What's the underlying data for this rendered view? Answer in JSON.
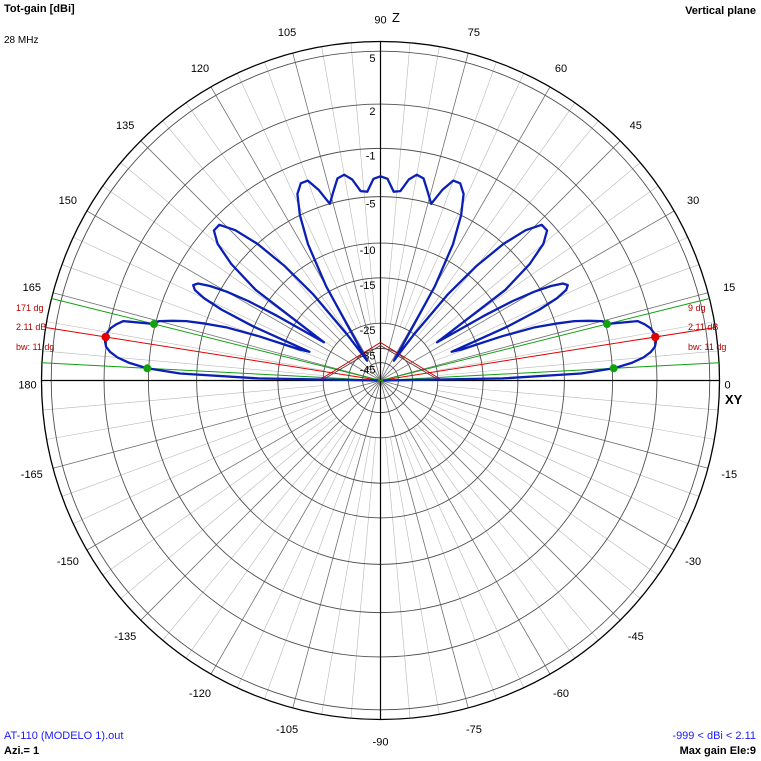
{
  "header": {
    "title": "Tot-gain [dBi]",
    "frequency": "28 MHz",
    "plane": "Vertical plane"
  },
  "footer": {
    "file": "AT-110 (MODELO 1).out",
    "azimuth": "Azi.= 1",
    "range": "-999 < dBi < 2.11",
    "max_gain": "Max gain Ele:9"
  },
  "axis_labels": {
    "vertical": "Z",
    "horizontal": "XY"
  },
  "annotations": {
    "right": {
      "angle": "9 dg",
      "gain": "2.11 dB",
      "beamwidth": "bw: 11 dg"
    },
    "left": {
      "angle": "171 dg",
      "gain": "2.11 dB",
      "beamwidth": "bw: 11 dg"
    }
  },
  "colors": {
    "pattern": "#0a1fb4",
    "grid": "#000000",
    "max_marker": "#e00000",
    "bw_marker": "#10a010",
    "text_blue": "#1a1aff"
  },
  "chart_data": {
    "type": "polar",
    "angle_ticks": [
      0,
      15,
      30,
      45,
      60,
      75,
      90,
      105,
      120,
      135,
      150,
      165,
      180,
      -165,
      -150,
      -135,
      -120,
      -105,
      -90,
      -75,
      -60,
      -45,
      -30,
      -15
    ],
    "gain_ticks": [
      5,
      2,
      -1,
      -5,
      -10,
      -15,
      -25,
      -35,
      -45
    ],
    "max_gain_dbi": 2.11,
    "max_gain_elevation_deg": 9,
    "beamwidth_deg": 11,
    "bw_limit_angles_deg": [
      3,
      14
    ],
    "series": [
      {
        "values_elevation_deg_gain_dbi": [
          [
            0,
            -45
          ],
          [
            1,
            -12
          ],
          [
            2,
            -3.5
          ],
          [
            3,
            -0.9
          ],
          [
            4,
            0.4
          ],
          [
            5,
            1.2
          ],
          [
            6,
            1.7
          ],
          [
            7,
            2.0
          ],
          [
            8,
            2.1
          ],
          [
            9,
            2.11
          ],
          [
            10,
            2.05
          ],
          [
            11,
            1.9
          ],
          [
            12,
            1.6
          ],
          [
            13,
            1.2
          ],
          [
            14,
            -0.9
          ],
          [
            15,
            -1.2
          ],
          [
            16,
            -2.2
          ],
          [
            17,
            -3.3
          ],
          [
            18,
            -5
          ],
          [
            19,
            -7
          ],
          [
            20,
            -11
          ],
          [
            21,
            -18
          ],
          [
            22,
            -20
          ],
          [
            23,
            -10
          ],
          [
            24,
            -6
          ],
          [
            25,
            -4
          ],
          [
            26,
            -3
          ],
          [
            27,
            -2.7
          ],
          [
            28,
            -3
          ],
          [
            29,
            -4
          ],
          [
            30,
            -5.6
          ],
          [
            31,
            -8
          ],
          [
            32,
            -12
          ],
          [
            34,
            -22
          ],
          [
            36,
            -8
          ],
          [
            38,
            -4.5
          ],
          [
            40,
            -2.5
          ],
          [
            42,
            -1.6
          ],
          [
            44,
            -1.6
          ],
          [
            46,
            -2.8
          ],
          [
            48,
            -5
          ],
          [
            50,
            -8.5
          ],
          [
            52,
            -14
          ],
          [
            54,
            -25
          ],
          [
            56,
            -40
          ],
          [
            58,
            -30
          ],
          [
            60,
            -14
          ],
          [
            62,
            -8
          ],
          [
            64,
            -5
          ],
          [
            66,
            -3.2
          ],
          [
            68,
            -2.5
          ],
          [
            70,
            -2.5
          ],
          [
            72,
            -3.5
          ],
          [
            74,
            -5
          ],
          [
            76,
            -4
          ],
          [
            78,
            -3
          ],
          [
            80,
            -2.8
          ],
          [
            82,
            -3.3
          ],
          [
            84,
            -4.4
          ],
          [
            86,
            -4.5
          ],
          [
            88,
            -3.4
          ],
          [
            90,
            -3.2
          ]
        ]
      }
    ]
  }
}
